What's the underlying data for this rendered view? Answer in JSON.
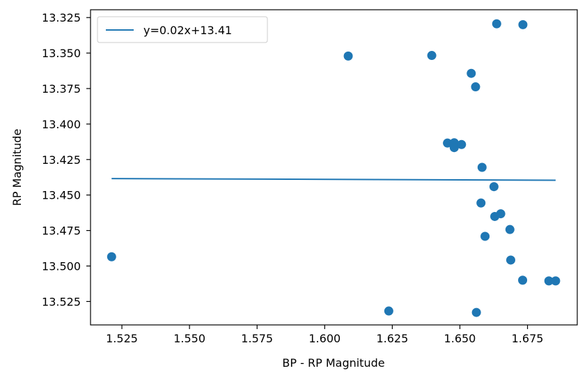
{
  "chart_data": {
    "type": "scatter",
    "title": "",
    "xlabel": "BP - RP Magnitude",
    "ylabel": "RP Magnitude",
    "xlim": [
      1.5134,
      1.6934
    ],
    "ylim": [
      13.5415,
      13.3195
    ],
    "y_inverted": true,
    "x_ticks": [
      "1.525",
      "1.550",
      "1.575",
      "1.600",
      "1.625",
      "1.650",
      "1.675"
    ],
    "x_tick_values": [
      1.525,
      1.55,
      1.575,
      1.6,
      1.625,
      1.65,
      1.675
    ],
    "y_ticks": [
      "13.325",
      "13.350",
      "13.375",
      "13.400",
      "13.425",
      "13.450",
      "13.475",
      "13.500",
      "13.525"
    ],
    "y_tick_values": [
      13.325,
      13.35,
      13.375,
      13.4,
      13.425,
      13.45,
      13.475,
      13.5,
      13.525
    ],
    "grid": false,
    "legend_position": "top-left",
    "series": [
      {
        "type": "line",
        "name": "y=0.02x+13.41",
        "color": "#1f77b4",
        "x": [
          1.5212,
          1.6854
        ],
        "y": [
          13.4384,
          13.4396
        ]
      },
      {
        "type": "scatter",
        "color": "#1f77b4",
        "x": [
          1.5212,
          1.6087,
          1.6237,
          1.6396,
          1.6454,
          1.6479,
          1.6479,
          1.6506,
          1.6542,
          1.6558,
          1.6561,
          1.6578,
          1.6582,
          1.6593,
          1.6626,
          1.6629,
          1.6636,
          1.6651,
          1.6685,
          1.6688,
          1.6732,
          1.6733,
          1.6829,
          1.6854
        ],
        "y": [
          13.4935,
          13.3521,
          13.5317,
          13.3517,
          13.4134,
          13.4132,
          13.4166,
          13.4144,
          13.3643,
          13.3738,
          13.5327,
          13.4556,
          13.4305,
          13.4791,
          13.4441,
          13.4651,
          13.3294,
          13.4632,
          13.4743,
          13.4958,
          13.51,
          13.33,
          13.5105,
          13.5105
        ]
      }
    ]
  }
}
